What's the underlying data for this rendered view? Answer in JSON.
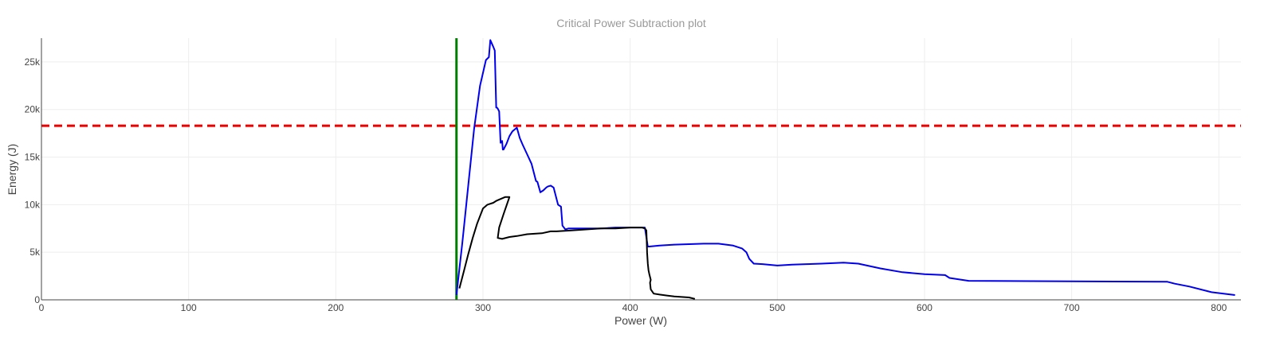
{
  "chart_data": {
    "type": "line",
    "title": "Critical Power Subtraction plot",
    "xlabel": "Power (W)",
    "ylabel": "Energy (J)",
    "xlim": [
      0,
      815
    ],
    "ylim": [
      0,
      27500
    ],
    "grid": true,
    "x_ticks": [
      {
        "value": 0,
        "label": "0"
      },
      {
        "value": 100,
        "label": "100"
      },
      {
        "value": 200,
        "label": "200"
      },
      {
        "value": 300,
        "label": "300"
      },
      {
        "value": 400,
        "label": "400"
      },
      {
        "value": 500,
        "label": "500"
      },
      {
        "value": 600,
        "label": "600"
      },
      {
        "value": 700,
        "label": "700"
      },
      {
        "value": 800,
        "label": "800"
      }
    ],
    "y_ticks": [
      {
        "value": 0,
        "label": "0"
      },
      {
        "value": 5000,
        "label": "5k"
      },
      {
        "value": 10000,
        "label": "10k"
      },
      {
        "value": 15000,
        "label": "15k"
      },
      {
        "value": 20000,
        "label": "20k"
      },
      {
        "value": 25000,
        "label": "25k"
      }
    ],
    "series": [
      {
        "color": "#0000ee",
        "x": [
          282,
          286,
          290,
          294,
          298,
          302,
          304,
          305,
          307,
          308,
          309,
          309.5,
          310,
          311,
          312,
          313,
          313.5,
          314,
          316,
          318,
          320,
          323,
          325,
          327,
          330,
          333,
          336,
          337,
          339,
          341,
          343,
          344,
          346,
          348,
          351,
          352,
          353,
          354,
          356,
          358,
          360,
          365,
          370,
          380,
          390,
          400,
          410,
          412,
          413,
          420,
          430,
          440,
          450,
          460,
          470,
          476,
          479,
          481,
          484,
          490,
          500,
          510,
          520,
          530,
          545,
          555,
          570,
          585,
          600,
          614,
          617,
          630,
          700,
          765,
          770,
          780,
          795,
          811
        ],
        "y": [
          500,
          6000,
          12000,
          18000,
          22500,
          25200,
          25500,
          27300,
          26600,
          26200,
          20200,
          20200,
          20100,
          19800,
          16500,
          16700,
          15800,
          15800,
          16400,
          17200,
          17700,
          18100,
          17000,
          16300,
          15300,
          14300,
          12500,
          12400,
          11300,
          11500,
          11800,
          11900,
          12000,
          11800,
          10000,
          9900,
          9800,
          7800,
          7400,
          7500,
          7500,
          7500,
          7500,
          7500,
          7600,
          7600,
          7600,
          5600,
          5600,
          5700,
          5800,
          5850,
          5900,
          5900,
          5700,
          5400,
          5000,
          4300,
          3800,
          3750,
          3600,
          3700,
          3750,
          3800,
          3900,
          3800,
          3300,
          2900,
          2700,
          2600,
          2300,
          2000,
          1950,
          1900,
          1700,
          1400,
          800,
          500
        ]
      },
      {
        "color": "#000000",
        "x": [
          284,
          287,
          290,
          293,
          296,
          300,
          303,
          305,
          307,
          309,
          312,
          315,
          318,
          314,
          311,
          310,
          313,
          318,
          323,
          330,
          340,
          346,
          350,
          360,
          370,
          380,
          390,
          400,
          408,
          410,
          411,
          411.5,
          412,
          412.5,
          413,
          414,
          413.5,
          414,
          416,
          420,
          425,
          430,
          440,
          444
        ],
        "y": [
          1200,
          3000,
          4800,
          6500,
          8000,
          9600,
          10000,
          10100,
          10200,
          10400,
          10600,
          10800,
          10800,
          9000,
          7600,
          6500,
          6400,
          6600,
          6700,
          6900,
          7000,
          7200,
          7200,
          7300,
          7400,
          7500,
          7500,
          7600,
          7600,
          7500,
          7300,
          5000,
          3800,
          3100,
          2700,
          2100,
          1800,
          1100,
          650,
          550,
          450,
          350,
          250,
          100
        ]
      }
    ],
    "reference_lines": [
      {
        "orientation": "horizontal",
        "value": 18300,
        "color": "#ee0000",
        "style": "dashed"
      },
      {
        "orientation": "vertical",
        "value": 282,
        "color": "#008000",
        "style": "solid"
      }
    ]
  }
}
